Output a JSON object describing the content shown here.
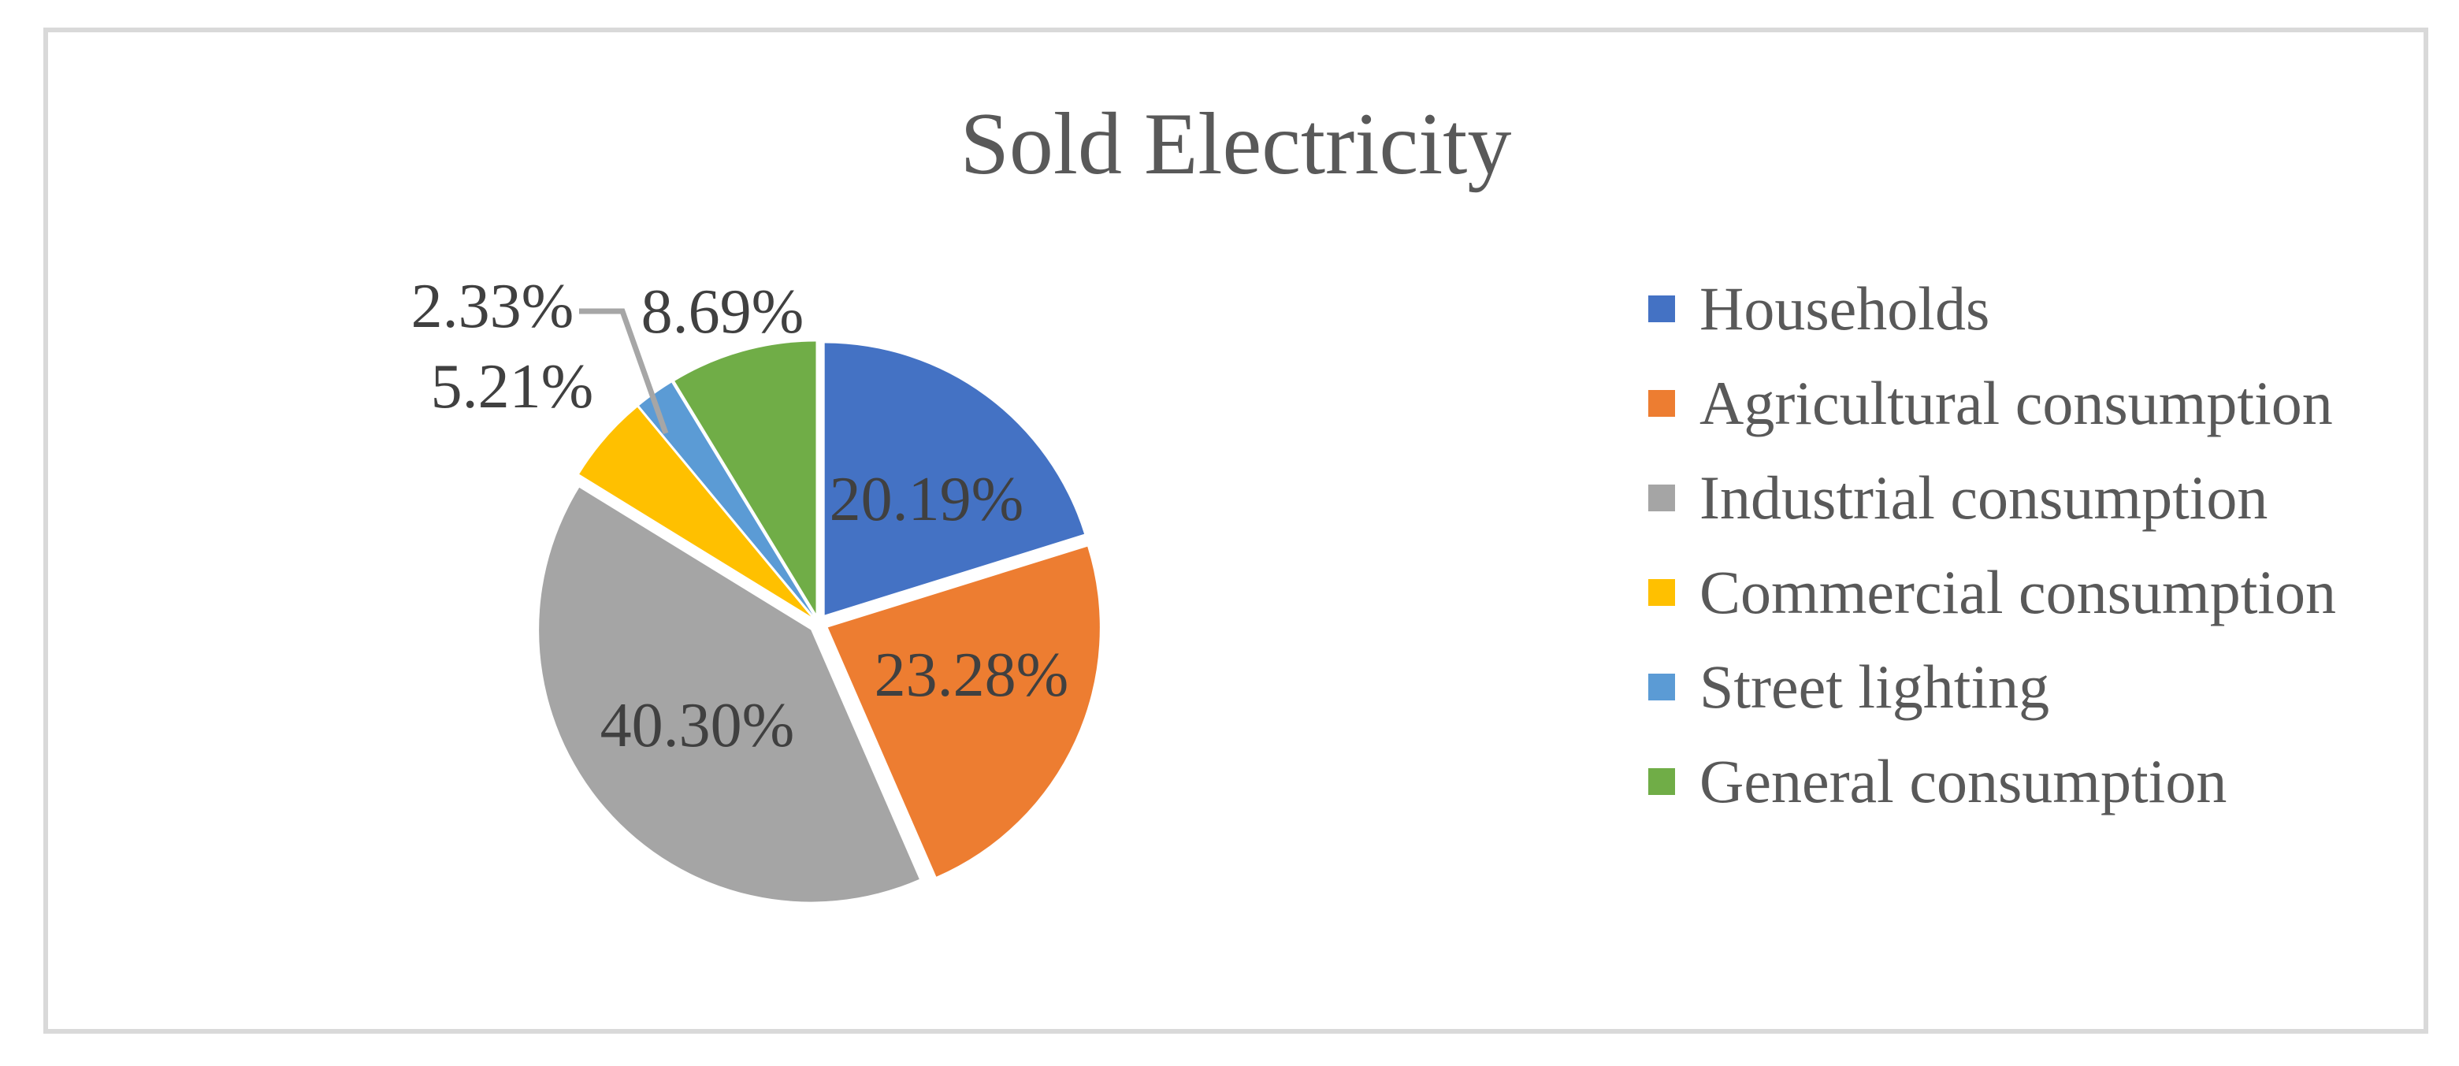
{
  "frame": {
    "border_color": "#D9D9D9",
    "background": "#FFFFFF"
  },
  "chart_data": {
    "type": "pie",
    "title": "Sold Electricity",
    "categories": [
      "Households",
      "Agricultural consumption",
      "Industrial consumption",
      "Commercial consumption",
      "Street lighting",
      "General consumption"
    ],
    "values": [
      20.19,
      23.28,
      40.3,
      5.21,
      2.33,
      8.69
    ],
    "labels": [
      "20.19%",
      "23.28%",
      "40.30%",
      "5.21%",
      "2.33%",
      "8.69%"
    ],
    "colors": [
      "#4472C4",
      "#ED7D31",
      "#A5A5A5",
      "#FFC000",
      "#5B9BD5",
      "#70AD47"
    ],
    "start_angle_deg": 0,
    "direction": "clockwise",
    "exploded": true,
    "label_placement": [
      "inside",
      "inside",
      "inside",
      "outside",
      "outside-leader",
      "outside"
    ],
    "legend_position": "right",
    "title_color": "#595959",
    "label_color": "#404040",
    "legend_text_color": "#595959",
    "leader_line_color": "#A6A6A6"
  }
}
